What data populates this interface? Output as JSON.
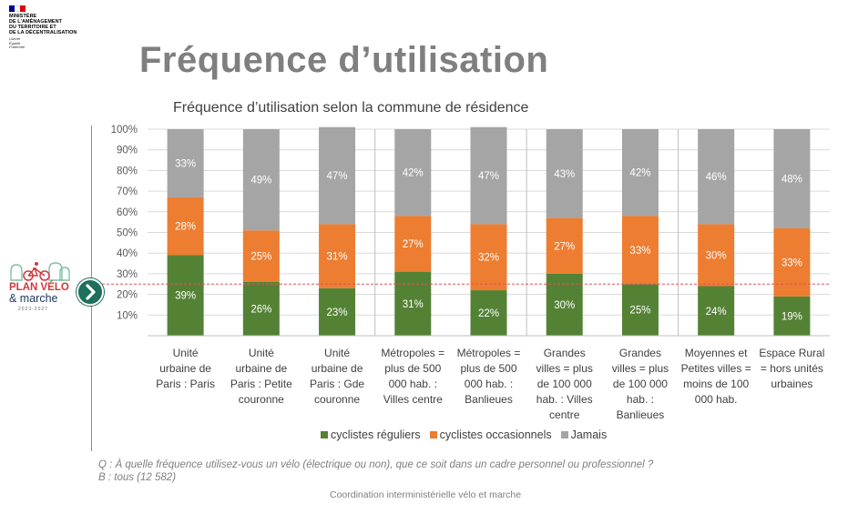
{
  "ministry": {
    "lines": [
      "MINISTÈRE",
      "DE L'AMÉNAGEMENT",
      "DU TERRITOIRE ET",
      "DE LA DÉCENTRALISATION"
    ],
    "motto": [
      "Liberté",
      "Égalité",
      "Fraternité"
    ]
  },
  "page_title": "Fréquence d’utilisation",
  "plan_logo": {
    "line1": "PLAN VÉLO",
    "line2": "& marche",
    "line3": "2023-2027"
  },
  "chart_data": {
    "type": "bar",
    "stacked": true,
    "title": "Fréquence d’utilisation selon la commune de résidence",
    "ylim": [
      0,
      100
    ],
    "y_ticks": [
      "10%",
      "20%",
      "30%",
      "40%",
      "50%",
      "60%",
      "70%",
      "80%",
      "90%",
      "100%"
    ],
    "reference_line": 25,
    "categories": [
      [
        "Unité",
        "urbaine de",
        "Paris : Paris"
      ],
      [
        "Unité",
        "urbaine de",
        "Paris : Petite",
        "couronne"
      ],
      [
        "Unité",
        "urbaine de",
        "Paris : Gde",
        "couronne"
      ],
      [
        "Métropoles =",
        "plus de 500",
        "000 hab. :",
        "Villes centre"
      ],
      [
        "Métropoles =",
        "plus de 500",
        "000 hab. :",
        "Banlieues"
      ],
      [
        "Grandes",
        "villes = plus",
        "de 100 000",
        "hab. : Villes",
        "centre"
      ],
      [
        "Grandes",
        "villes = plus",
        "de 100 000",
        "hab. :",
        "Banlieues"
      ],
      [
        "Moyennes et",
        "Petites villes =",
        "moins de 100",
        "000 hab."
      ],
      [
        "Espace Rural",
        "= hors unités",
        "urbaines"
      ]
    ],
    "group_separators_after": [
      2,
      4,
      6
    ],
    "series": [
      {
        "name": "cyclistes réguliers",
        "color": "#548235",
        "values": [
          39,
          26,
          23,
          31,
          22,
          30,
          25,
          24,
          19
        ],
        "labels": [
          "39%",
          "26%",
          "23%",
          "31%",
          "22%",
          "30%",
          "25%",
          "24%",
          "19%"
        ]
      },
      {
        "name": "cyclistes occasionnels",
        "color": "#ed7d31",
        "values": [
          28,
          25,
          31,
          27,
          32,
          27,
          33,
          30,
          33
        ],
        "labels": [
          "28%",
          "25%",
          "31%",
          "27%",
          "32%",
          "27%",
          "33%",
          "30%",
          "33%"
        ]
      },
      {
        "name": "Jamais",
        "color": "#a5a5a5",
        "values": [
          33,
          49,
          47,
          42,
          47,
          43,
          42,
          46,
          48
        ],
        "labels": [
          "33%",
          "49%",
          "47%",
          "42%",
          "47%",
          "43%",
          "42%",
          "46%",
          "48%"
        ]
      }
    ],
    "legend_position": "bottom",
    "grid": true
  },
  "question_lines": [
    "Q : À quelle fréquence utilisez-vous un vélo (électrique ou non), que ce soit dans un cadre personnel ou professionnel ?",
    "B : tous (12 582)"
  ],
  "footer": "Coordination interministérielle vélo et marche",
  "colors": {
    "title_gray": "#7f7f7f",
    "ref_line": "#e05555",
    "separator": "#bfbfbf"
  }
}
